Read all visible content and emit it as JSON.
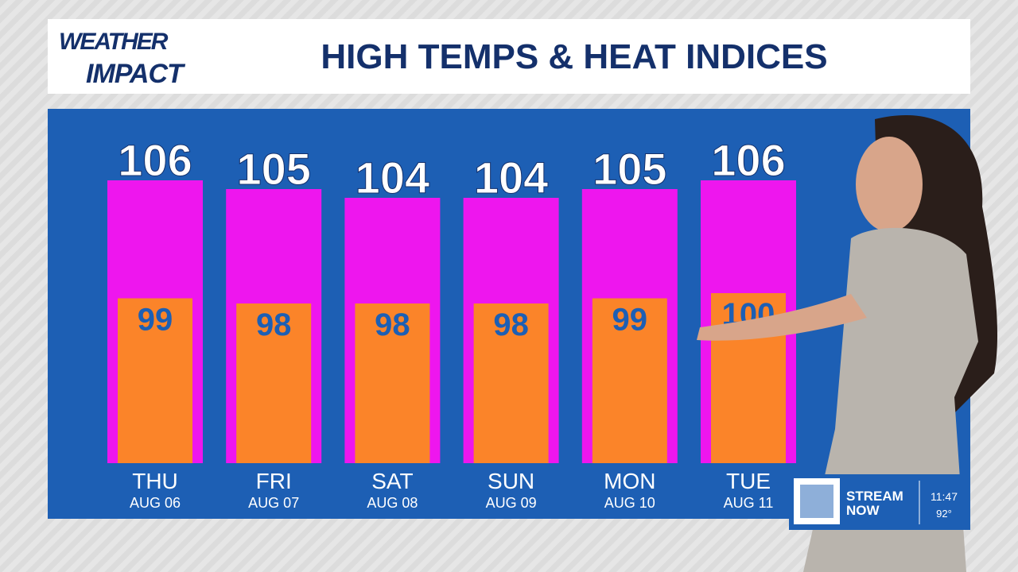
{
  "header": {
    "logo": [
      "WEATHER",
      "IMPACT"
    ],
    "title": "HIGH TEMPS & HEAT INDICES"
  },
  "chart_data": {
    "type": "bar",
    "categories": [
      "THU",
      "FRI",
      "SAT",
      "SUN",
      "MON",
      "TUE"
    ],
    "dates": [
      "AUG 06",
      "AUG 07",
      "AUG 08",
      "AUG 09",
      "AUG 10",
      "AUG 11"
    ],
    "series": [
      {
        "color": "#ee16ee",
        "values": [
          106,
          105,
          104,
          104,
          105,
          106
        ]
      },
      {
        "color": "#fb8429",
        "values": [
          99,
          98,
          98,
          98,
          99,
          100
        ]
      }
    ]
  },
  "badge": {
    "text": [
      "STREAM",
      "NOW"
    ],
    "time": "11:47",
    "temp": "92°"
  }
}
